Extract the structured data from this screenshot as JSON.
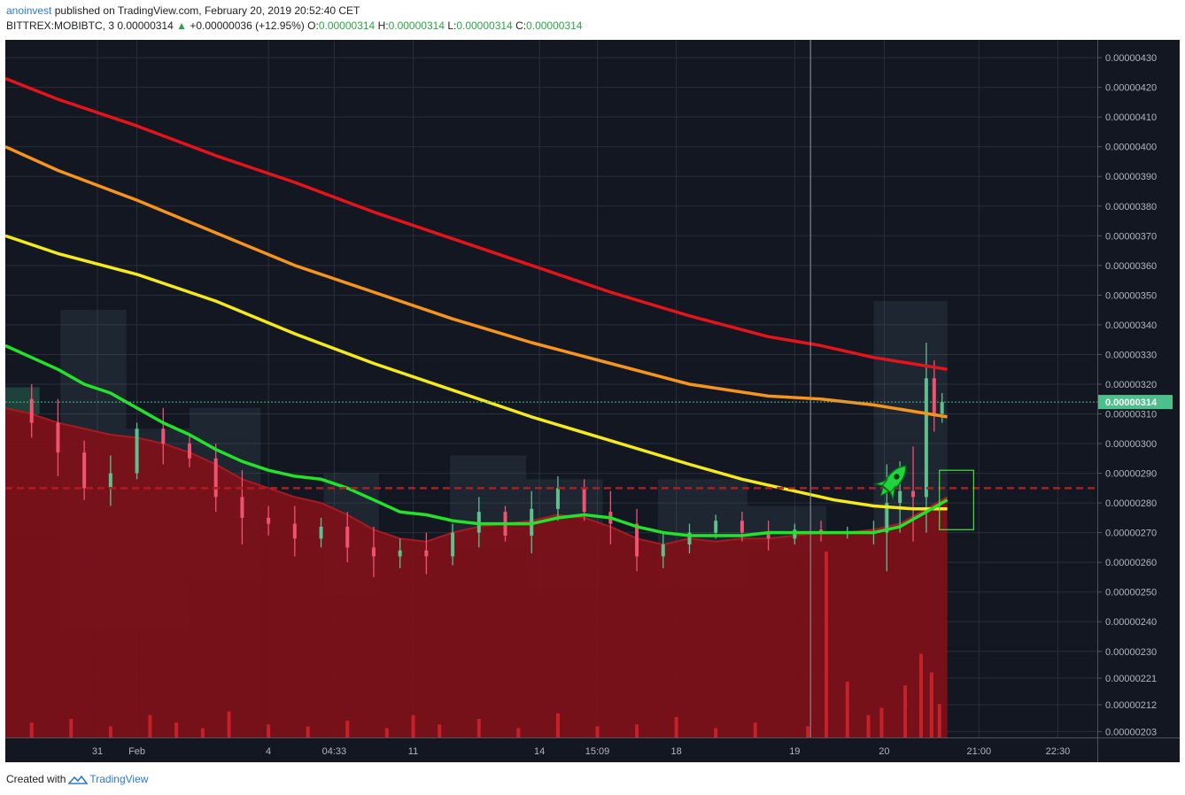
{
  "header": {
    "author": "anoinvest",
    "published_text": "published on TradingView.com, February 20, 2019 20:52:40 CET",
    "symbol": "BITTREX:MOBIBTC, 3",
    "price": "0.00000314",
    "arrow": "▲",
    "change": "+0.00000036 (+12.95%)",
    "open_label": "O:",
    "open": "0.00000314",
    "high_label": "H:",
    "high": "0.00000314",
    "low_label": "L:",
    "low": "0.00000314",
    "close_label": "C:",
    "close": "0.00000314"
  },
  "footer": {
    "created_with": "Created with",
    "brand": "TradingView"
  },
  "colors": {
    "background": "#131722",
    "grid": "#2a2e39",
    "up": "#5fbf8f",
    "down": "#ef5370",
    "ma_red": "#e4141a",
    "ma_orange": "#f7941d",
    "ma_yellow": "#f5ea1a",
    "ma_green": "#22e22a",
    "volume_fill": "#7f1019",
    "support_line": "#b01c22",
    "price_label_bg": "#4cbf8a"
  },
  "icons": {
    "rocket": "rocket-icon"
  },
  "chart_data": {
    "type": "line",
    "symbol": "BITTREX:MOBIBTC",
    "interval": "3",
    "yaxis": {
      "ticks": [
        "0.00000430",
        "0.00000420",
        "0.00000410",
        "0.00000400",
        "0.00000390",
        "0.00000380",
        "0.00000370",
        "0.00000360",
        "0.00000350",
        "0.00000340",
        "0.00000330",
        "0.00000320",
        "0.00000310",
        "0.00000300",
        "0.00000290",
        "0.00000280",
        "0.00000270",
        "0.00000260",
        "0.00000250",
        "0.00000240",
        "0.00000230",
        "0.00000221",
        "0.00000212",
        "0.00000203"
      ],
      "ylim": [
        2.01e-06,
        4.36e-06
      ],
      "current_price_label": "0.00000314",
      "current_price": 3.14e-06
    },
    "xaxis": {
      "ticks": [
        {
          "label": "31",
          "x": 3.5
        },
        {
          "label": "Feb",
          "x": 5.0
        },
        {
          "label": "4",
          "x": 10.0
        },
        {
          "label": "04:33",
          "x": 12.5
        },
        {
          "label": "11",
          "x": 15.5
        },
        {
          "label": "14",
          "x": 20.3
        },
        {
          "label": "15:09",
          "x": 22.5
        },
        {
          "label": "18",
          "x": 25.5
        },
        {
          "label": "19",
          "x": 30.0
        },
        {
          "label": "20",
          "x": 33.4
        },
        {
          "label": "21:00",
          "x": 37.0
        },
        {
          "label": "22:30",
          "x": 40.0
        }
      ],
      "xlim": [
        0,
        41.5
      ]
    },
    "grid": true,
    "support_level": 2.85e-06,
    "crosshair_x": 30.6,
    "series": [
      {
        "color": "#e4141a",
        "x": [
          0,
          2,
          5,
          8,
          11,
          14,
          17,
          20,
          23,
          26,
          29,
          31,
          33,
          35.8
        ],
        "values": [
          4.23e-06,
          4.16e-06,
          4.07e-06,
          3.97e-06,
          3.88e-06,
          3.78e-06,
          3.69e-06,
          3.6e-06,
          3.51e-06,
          3.43e-06,
          3.36e-06,
          3.33e-06,
          3.29e-06,
          3.25e-06
        ]
      },
      {
        "color": "#f7941d",
        "x": [
          0,
          2,
          5,
          8,
          11,
          14,
          17,
          20,
          23,
          26,
          29,
          31,
          33,
          35.8
        ],
        "values": [
          4e-06,
          3.92e-06,
          3.82e-06,
          3.71e-06,
          3.6e-06,
          3.51e-06,
          3.42e-06,
          3.34e-06,
          3.27e-06,
          3.2e-06,
          3.16e-06,
          3.15e-06,
          3.13e-06,
          3.09e-06
        ]
      },
      {
        "color": "#f5ea1a",
        "x": [
          0,
          2,
          5,
          8,
          11,
          14,
          17,
          20,
          23,
          26,
          28,
          30,
          31.5,
          33,
          34.5,
          35.8
        ],
        "values": [
          3.7e-06,
          3.64e-06,
          3.57e-06,
          3.48e-06,
          3.37e-06,
          3.27e-06,
          3.18e-06,
          3.09e-06,
          3.01e-06,
          2.93e-06,
          2.88e-06,
          2.84e-06,
          2.81e-06,
          2.79e-06,
          2.78e-06,
          2.78e-06
        ]
      },
      {
        "color": "#22e22a",
        "x": [
          0,
          1,
          2,
          3,
          4,
          5,
          6,
          7,
          8,
          9,
          10,
          11,
          12,
          13,
          14,
          15,
          16,
          17,
          18,
          19,
          20,
          21,
          22,
          23,
          24,
          25,
          26,
          27,
          28,
          29,
          30,
          31,
          32,
          33,
          34,
          35,
          35.8
        ],
        "values": [
          3.33e-06,
          3.29e-06,
          3.25e-06,
          3.2e-06,
          3.17e-06,
          3.12e-06,
          3.07e-06,
          3.03e-06,
          2.98e-06,
          2.94e-06,
          2.91e-06,
          2.89e-06,
          2.88e-06,
          2.85e-06,
          2.81e-06,
          2.77e-06,
          2.76e-06,
          2.74e-06,
          2.73e-06,
          2.73e-06,
          2.73e-06,
          2.75e-06,
          2.76e-06,
          2.75e-06,
          2.72e-06,
          2.7e-06,
          2.69e-06,
          2.69e-06,
          2.69e-06,
          2.7e-06,
          2.7e-06,
          2.7e-06,
          2.7e-06,
          2.7e-06,
          2.72e-06,
          2.77e-06,
          2.81e-06
        ]
      }
    ],
    "volume_profile": {
      "x": [
        0,
        1,
        2,
        3,
        4,
        5,
        6,
        7,
        8,
        9,
        10,
        11,
        12,
        13,
        14,
        15,
        16,
        17,
        18,
        19,
        20,
        21,
        22,
        23,
        24,
        25,
        26,
        27,
        28,
        29,
        30,
        31,
        32,
        33,
        34,
        35,
        35.8
      ],
      "values": [
        3.12e-06,
        3.1e-06,
        3.07e-06,
        3.05e-06,
        3.03e-06,
        3.02e-06,
        3e-06,
        2.97e-06,
        2.93e-06,
        2.88e-06,
        2.85e-06,
        2.82e-06,
        2.8e-06,
        2.76e-06,
        2.71e-06,
        2.68e-06,
        2.67e-06,
        2.7e-06,
        2.72e-06,
        2.73e-06,
        2.74e-06,
        2.76e-06,
        2.75e-06,
        2.72e-06,
        2.68e-06,
        2.66e-06,
        2.68e-06,
        2.67e-06,
        2.68e-06,
        2.68e-06,
        2.69e-06,
        2.7e-06,
        2.7e-06,
        2.71e-06,
        2.73e-06,
        2.78e-06,
        2.82e-06
      ]
    },
    "price_path": {
      "x": [
        0,
        1,
        2,
        3,
        4,
        5,
        6,
        7,
        8,
        9,
        10,
        11,
        12,
        13,
        14,
        15,
        16,
        17,
        18,
        19,
        20,
        21,
        22,
        23,
        24,
        25,
        26,
        27,
        28,
        29,
        30,
        31,
        32,
        33,
        33.5,
        34,
        34.5,
        35,
        35.3,
        35.6
      ],
      "values": [
        3.15e-06,
        3.07e-06,
        2.97e-06,
        2.85e-06,
        2.9e-06,
        3.05e-06,
        3e-06,
        2.95e-06,
        2.82e-06,
        2.75e-06,
        2.73e-06,
        2.68e-06,
        2.72e-06,
        2.65e-06,
        2.62e-06,
        2.64e-06,
        2.62e-06,
        2.7e-06,
        2.77e-06,
        2.69e-06,
        2.78e-06,
        2.85e-06,
        2.77e-06,
        2.73e-06,
        2.62e-06,
        2.66e-06,
        2.7e-06,
        2.74e-06,
        2.7e-06,
        2.68e-06,
        2.71e-06,
        2.7e-06,
        2.7e-06,
        2.7e-06,
        2.8e-06,
        2.84e-06,
        2.82e-06,
        3.22e-06,
        3.1e-06,
        3.14e-06
      ],
      "wick_pct": [
        0.3,
        0.5,
        0.8,
        0.4,
        0.6,
        0.2,
        0.7,
        0.3,
        0.5,
        0.9,
        0.4,
        0.6,
        0.3,
        0.5,
        0.7,
        0.4,
        0.6,
        0.3,
        0.5,
        0.2,
        0.6,
        0.4,
        0.3,
        0.7,
        0.5,
        0.4,
        0.3,
        0.2,
        0.3,
        0.4,
        0.2,
        0.3,
        0.2,
        0.4,
        1.3,
        1.0,
        1.5,
        1.2,
        0.6,
        0.3
      ]
    },
    "volume_bars": {
      "x": [
        1,
        2.5,
        4,
        5.5,
        6.5,
        7.5,
        8.5,
        10,
        11.5,
        13,
        14.5,
        15.5,
        16.5,
        18,
        19.5,
        21,
        22.5,
        24,
        25.5,
        27,
        28.5,
        30.5,
        31.2,
        32,
        32.8,
        33.3,
        34.2,
        34.8,
        35.2,
        35.5
      ],
      "rel": [
        0.08,
        0.1,
        0.06,
        0.12,
        0.08,
        0.05,
        0.14,
        0.07,
        0.06,
        0.09,
        0.05,
        0.12,
        0.07,
        0.1,
        0.05,
        0.13,
        0.06,
        0.07,
        0.11,
        0.05,
        0.08,
        0.06,
        1.0,
        0.3,
        0.12,
        0.16,
        0.28,
        0.45,
        0.35,
        0.18
      ]
    },
    "profile_boxes": [
      {
        "x0": 0,
        "x1": 1.3,
        "y0": 3.1e-06,
        "y1": 3.19e-06,
        "kind": "body"
      },
      {
        "x0": 2.1,
        "x1": 4.6,
        "y0": 2.37e-06,
        "y1": 3.45e-06,
        "kind": "range"
      },
      {
        "x0": 4.6,
        "x1": 7.0,
        "y0": 2.37e-06,
        "y1": 3.05e-06,
        "kind": "range"
      },
      {
        "x0": 7.0,
        "x1": 9.7,
        "y0": 2.55e-06,
        "y1": 3.12e-06,
        "kind": "range"
      },
      {
        "x0": 12.1,
        "x1": 14.2,
        "y0": 2.49e-06,
        "y1": 2.9e-06,
        "kind": "range"
      },
      {
        "x0": 16.9,
        "x1": 19.8,
        "y0": 2.65e-06,
        "y1": 2.96e-06,
        "kind": "range"
      },
      {
        "x0": 19.8,
        "x1": 22.7,
        "y0": 2.51e-06,
        "y1": 2.88e-06,
        "kind": "range"
      },
      {
        "x0": 24.8,
        "x1": 28.2,
        "y0": 2.51e-06,
        "y1": 2.88e-06,
        "kind": "range"
      },
      {
        "x0": 28.2,
        "x1": 31.2,
        "y0": 2.63e-06,
        "y1": 2.79e-06,
        "kind": "range"
      },
      {
        "x0": 33.0,
        "x1": 35.8,
        "y0": 2.71e-06,
        "y1": 3.48e-06,
        "kind": "range"
      }
    ],
    "highlight_box": {
      "x0": 35.5,
      "x1": 36.8,
      "y0": 2.71e-06,
      "y1": 2.91e-06
    },
    "title": "",
    "xlabel": "",
    "ylabel": ""
  }
}
